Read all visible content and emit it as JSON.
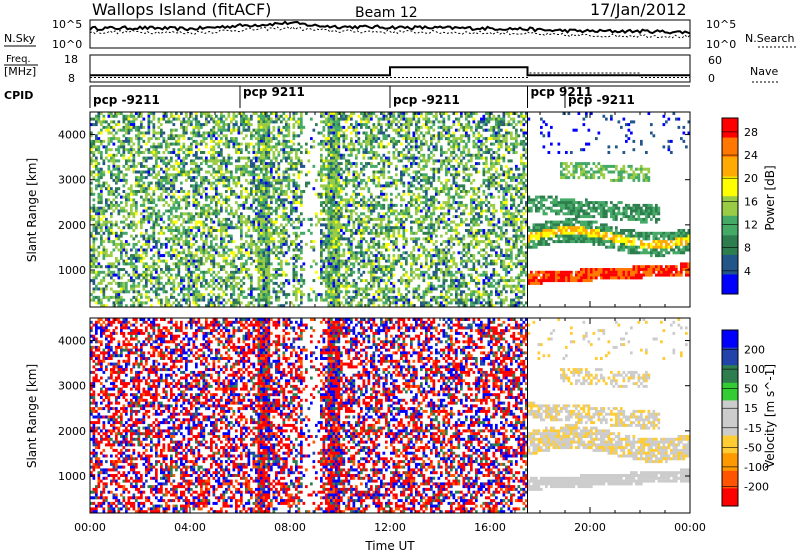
{
  "header": {
    "station": "Wallops Island (fitACF)",
    "beam": "Beam 12",
    "date": "17/Jan/2012"
  },
  "side_labels": {
    "nsky": "N.Sky",
    "nsearch": "N.Search",
    "freq_line1": "Freq.",
    "freq_line2": "[MHz]",
    "nave": "Nave",
    "cpid": "CPID"
  },
  "noise_panel": {
    "left_ticks": [
      "10^5",
      "10^0"
    ],
    "right_ticks": [
      "10^5",
      "10^0"
    ]
  },
  "freq_panel": {
    "left_ticks": [
      "18",
      "8"
    ],
    "right_ticks": [
      "60",
      "0"
    ]
  },
  "cpid_panel": {
    "segments": [
      {
        "label": "pcp -9211",
        "start_h": 0.0
      },
      {
        "label": "pcp 9211",
        "start_h": 6.0
      },
      {
        "label": "pcp -9211",
        "start_h": 12.0
      },
      {
        "label": "pcp 9211",
        "start_h": 17.5
      },
      {
        "label": "pcp -9211",
        "start_h": 19.0
      }
    ]
  },
  "colors": {
    "power_scale": [
      "#0000ff",
      "#225588",
      "#2e7d4f",
      "#44aa66",
      "#99cc44",
      "#ffff00",
      "#ffaa00",
      "#ff7700",
      "#ff0000"
    ],
    "velocity_scale": [
      "#ff0000",
      "#ff5500",
      "#ff9900",
      "#ffcc33",
      "#cccccc",
      "#cccccc",
      "#33cc33",
      "#2e7d4f",
      "#2244aa",
      "#0000ff"
    ]
  },
  "chart_data": [
    {
      "type": "line",
      "name": "noise",
      "x": [
        0,
        2,
        4,
        6,
        7,
        8,
        9,
        10,
        12,
        14,
        16,
        17.5,
        18,
        20,
        22,
        24
      ],
      "ylim_label": [
        "10^0",
        "10^5"
      ],
      "series": [
        {
          "name": "N.Sky",
          "values": [
            3.5,
            3.6,
            3.4,
            4.0,
            4.2,
            4.5,
            4.0,
            3.8,
            3.7,
            3.6,
            3.5,
            3.4,
            3.2,
            3.0,
            3.0,
            2.8
          ]
        },
        {
          "name": "N.Search",
          "values": [
            2.8,
            2.9,
            2.7,
            3.2,
            3.4,
            3.6,
            3.2,
            3.0,
            2.9,
            2.8,
            2.7,
            2.6,
            2.4,
            2.2,
            2.2,
            2.0
          ]
        }
      ]
    },
    {
      "type": "line",
      "name": "frequency-and-nave",
      "x": [
        0,
        12,
        12,
        17.5,
        17.5,
        22,
        22,
        24
      ],
      "series": [
        {
          "name": "Freq",
          "unit": "MHz",
          "values": [
            10.5,
            10.5,
            13.5,
            13.5,
            10.5,
            10.5,
            10.5,
            10.5
          ]
        },
        {
          "name": "Nave",
          "values": [
            10,
            10,
            10,
            10,
            20,
            20,
            10,
            10
          ]
        }
      ]
    },
    {
      "type": "heatmap",
      "name": "power",
      "xlabel": "",
      "ylabel": "Slant Range [km]",
      "xlim": [
        0,
        24
      ],
      "ylim": [
        180,
        4500
      ],
      "yticks": [
        "1000",
        "2000",
        "3000",
        "4000"
      ],
      "colorbar_label": "Power [dB]",
      "colorbar_ticks": [
        "4",
        "8",
        "12",
        "16",
        "20",
        "24",
        "28"
      ],
      "colorbar_range": [
        0,
        30
      ],
      "ionospheric_scatter_hours": [
        17.5,
        24
      ]
    },
    {
      "type": "heatmap",
      "name": "velocity",
      "xlabel": "Time UT",
      "ylabel": "Slant Range [km]",
      "xlim": [
        0,
        24
      ],
      "ylim": [
        180,
        4500
      ],
      "xticks": [
        "00:00",
        "04:00",
        "08:00",
        "12:00",
        "16:00",
        "20:00",
        "00:00"
      ],
      "yticks": [
        "1000",
        "2000",
        "3000",
        "4000"
      ],
      "colorbar_label": "Velocity [m s^-1]",
      "colorbar_ticks": [
        "200",
        "100",
        "50",
        "15",
        "-15",
        "-50",
        "-100",
        "-200"
      ],
      "colorbar_range": [
        -250,
        250
      ]
    }
  ]
}
